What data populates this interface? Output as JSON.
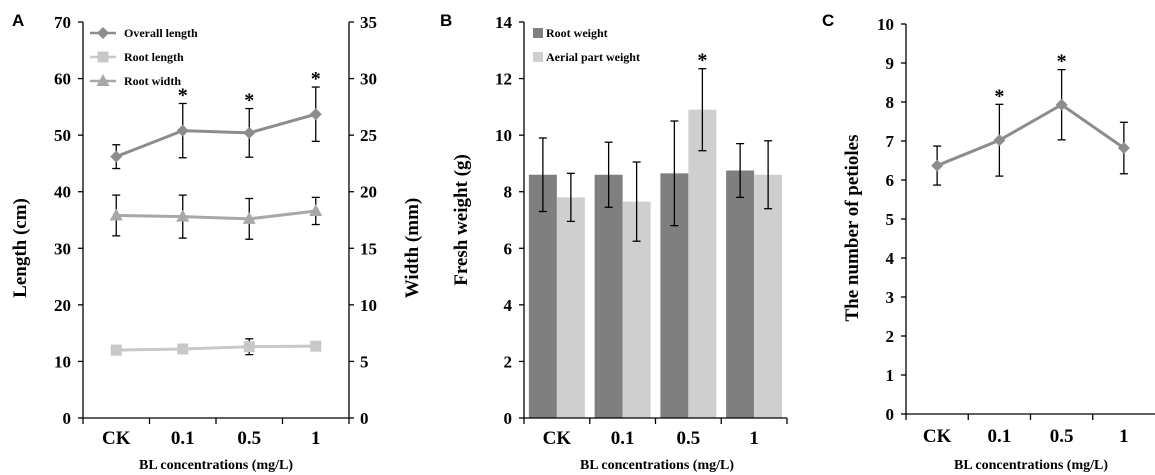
{
  "chart_data": [
    {
      "panel": "A",
      "type": "line",
      "categories": [
        "CK",
        "0.1",
        "0.5",
        "1"
      ],
      "xlabel": "BL concentrations (mg/L)",
      "ylabel": "Length (cm)",
      "y2label": "Width (mm)",
      "ylim": [
        0,
        70
      ],
      "y2lim": [
        0,
        35
      ],
      "yticks": [
        "0",
        "10",
        "20",
        "30",
        "40",
        "50",
        "60",
        "70"
      ],
      "y2ticks": [
        "0",
        "5",
        "10",
        "15",
        "20",
        "25",
        "30",
        "35"
      ],
      "legend_position": "top-left",
      "series": [
        {
          "name": "Overall length",
          "axis": "left",
          "marker": "diamond",
          "color": "#8c8c8c",
          "values": [
            46.2,
            50.8,
            50.4,
            53.7
          ],
          "err": [
            2.1,
            4.8,
            4.3,
            4.8
          ],
          "sig": [
            false,
            true,
            true,
            true
          ]
        },
        {
          "name": "Root length",
          "axis": "left",
          "marker": "square",
          "color": "#c8c8c8",
          "values": [
            12.0,
            12.2,
            12.6,
            12.7
          ],
          "err": [
            0.5,
            0.5,
            1.4,
            0.6
          ],
          "sig": [
            false,
            false,
            false,
            false
          ]
        },
        {
          "name": "Root width",
          "axis": "right",
          "marker": "triangle",
          "color": "#a8a8a8",
          "values": [
            17.9,
            17.8,
            17.6,
            18.3
          ],
          "err": [
            1.8,
            1.9,
            1.8,
            1.2
          ],
          "sig": [
            false,
            false,
            false,
            false
          ]
        }
      ]
    },
    {
      "panel": "B",
      "type": "bar",
      "categories": [
        "CK",
        "0.1",
        "0.5",
        "1"
      ],
      "xlabel": "BL concentrations (mg/L)",
      "ylabel": "Fresh weight (g)",
      "ylim": [
        0,
        14
      ],
      "yticks": [
        "0",
        "2",
        "4",
        "6",
        "8",
        "10",
        "12",
        "14"
      ],
      "legend_position": "top-left",
      "series": [
        {
          "name": "Root weight",
          "color": "#7f7f7f",
          "values": [
            8.6,
            8.6,
            8.65,
            8.75
          ],
          "err": [
            1.3,
            1.15,
            1.85,
            0.95
          ],
          "sig": [
            false,
            false,
            false,
            false
          ]
        },
        {
          "name": "Aerial part weight",
          "color": "#cfcfcf",
          "values": [
            7.8,
            7.65,
            10.9,
            8.6
          ],
          "err": [
            0.85,
            1.4,
            1.45,
            1.2
          ],
          "sig": [
            false,
            false,
            true,
            false
          ]
        }
      ]
    },
    {
      "panel": "C",
      "type": "line",
      "categories": [
        "CK",
        "0.1",
        "0.5",
        "1"
      ],
      "xlabel": "BL concentrations (mg/L)",
      "ylabel": "The number of petioles",
      "ylim": [
        0,
        10
      ],
      "yticks": [
        "0",
        "1",
        "2",
        "3",
        "4",
        "5",
        "6",
        "7",
        "8",
        "9",
        "10"
      ],
      "series": [
        {
          "marker": "diamond",
          "color": "#8c8c8c",
          "values": [
            6.37,
            7.02,
            7.93,
            6.82
          ],
          "err": [
            0.5,
            0.92,
            0.9,
            0.66
          ],
          "sig": [
            false,
            true,
            true,
            false
          ]
        }
      ]
    }
  ]
}
